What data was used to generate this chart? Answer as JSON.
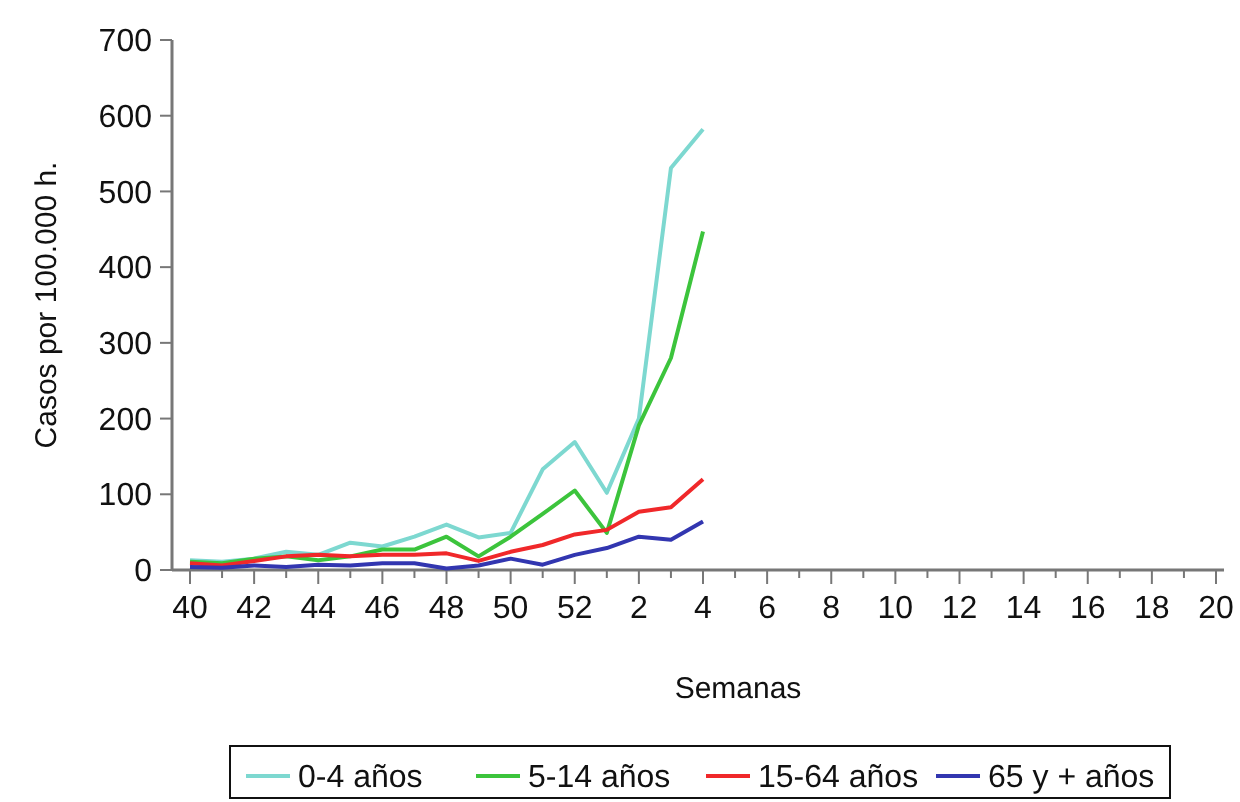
{
  "chart_data": {
    "type": "line",
    "xlabel": "Semanas",
    "ylabel": "Casos por 100.000 h.",
    "categories": [
      "40",
      null,
      "42",
      null,
      "44",
      null,
      "46",
      null,
      "48",
      null,
      "50",
      null,
      "52",
      null,
      "2",
      null,
      "4",
      null,
      "6",
      null,
      "8",
      null,
      "10",
      null,
      "12",
      null,
      "14",
      null,
      "16",
      null,
      "18",
      null,
      "20"
    ],
    "ylim": [
      0,
      700
    ],
    "yticks": [
      0,
      100,
      200,
      300,
      400,
      500,
      600,
      700
    ],
    "grid": false,
    "legend": "bottom",
    "marker": "none",
    "line_style": "solid",
    "series": [
      {
        "name": "0-4 años",
        "color": "#7dd8d0",
        "values": [
          13,
          11,
          15,
          24,
          20,
          36,
          31,
          44,
          60,
          43,
          49,
          133,
          169,
          102,
          200,
          531,
          582,
          null,
          null,
          null,
          null,
          null,
          null,
          null,
          null,
          null,
          null,
          null,
          null,
          null,
          null,
          null,
          null
        ]
      },
      {
        "name": "5-14 años",
        "color": "#3cc43c",
        "values": [
          11,
          9,
          15,
          18,
          13,
          18,
          27,
          27,
          44,
          18,
          44,
          74,
          105,
          49,
          191,
          280,
          447,
          null,
          null,
          null,
          null,
          null,
          null,
          null,
          null,
          null,
          null,
          null,
          null,
          null,
          null,
          null,
          null
        ]
      },
      {
        "name": "15-64 años",
        "color": "#f0282a",
        "values": [
          9,
          6,
          12,
          18,
          20,
          18,
          20,
          20,
          22,
          12,
          24,
          33,
          47,
          53,
          77,
          83,
          120,
          null,
          null,
          null,
          null,
          null,
          null,
          null,
          null,
          null,
          null,
          null,
          null,
          null,
          null,
          null,
          null
        ]
      },
      {
        "name": "65 y + años",
        "color": "#3236b0",
        "values": [
          4,
          3,
          6,
          4,
          7,
          6,
          9,
          9,
          2,
          6,
          15,
          7,
          20,
          29,
          44,
          40,
          64,
          null,
          null,
          null,
          null,
          null,
          null,
          null,
          null,
          null,
          null,
          null,
          null,
          null,
          null,
          null,
          null
        ]
      }
    ]
  }
}
